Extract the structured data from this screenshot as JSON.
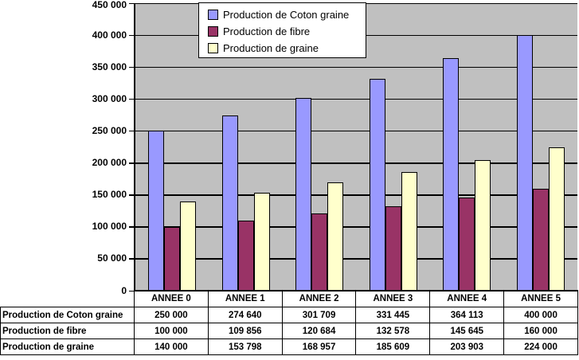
{
  "chart_data": {
    "type": "bar",
    "title": "",
    "xlabel": "",
    "ylabel": "",
    "categories": [
      "ANNEE 0",
      "ANNEE 1",
      "ANNEE 2",
      "ANNEE 3",
      "ANNEE 4",
      "ANNEE 5"
    ],
    "series": [
      {
        "name": "Production de Coton graine",
        "color": "#9999FF",
        "values": [
          250000,
          274640,
          301709,
          331445,
          364113,
          400000
        ]
      },
      {
        "name": "Production de fibre",
        "color": "#993366",
        "values": [
          100000,
          109856,
          120684,
          132578,
          145645,
          160000
        ]
      },
      {
        "name": "Production de graine",
        "color": "#FFFFCC",
        "values": [
          140000,
          153798,
          168957,
          185609,
          203903,
          224000
        ]
      }
    ],
    "ylim": [
      0,
      450000
    ],
    "y_tick_step": 50000,
    "y_tick_labels": [
      "0",
      "50 000",
      "100 000",
      "150 000",
      "200 000",
      "250 000",
      "300 000",
      "350 000",
      "400 000",
      "450 000"
    ],
    "grid": true,
    "legend_position": "top-center",
    "plot_background": "#C0C0C0",
    "gridline_color": "#000000",
    "data_table_shown": true,
    "number_format": "space-thousands"
  }
}
